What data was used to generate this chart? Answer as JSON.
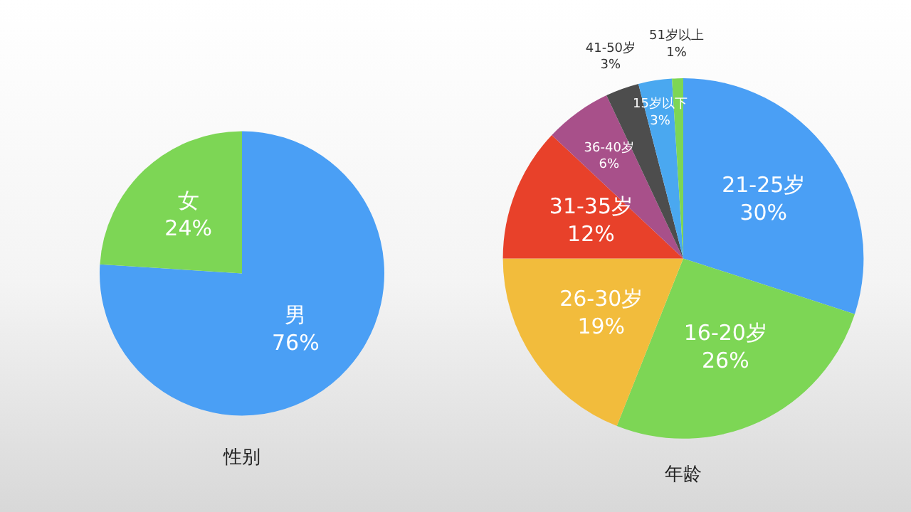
{
  "chart_data": [
    {
      "type": "pie",
      "title": "性别",
      "categories": [
        "男",
        "女"
      ],
      "values": [
        76,
        24
      ],
      "value_labels": [
        "76%",
        "24%"
      ],
      "colors": [
        "#4a9ff5",
        "#7dd655"
      ]
    },
    {
      "type": "pie",
      "title": "年龄",
      "categories": [
        "21-25岁",
        "16-20岁",
        "26-30岁",
        "31-35岁",
        "36-40岁",
        "41-50岁",
        "15岁以下",
        "51岁以上"
      ],
      "values": [
        30,
        26,
        19,
        12,
        6,
        3,
        3,
        1
      ],
      "value_labels": [
        "30%",
        "26%",
        "19%",
        "12%",
        "6%",
        "3%",
        "3%",
        "1%"
      ],
      "colors": [
        "#4a9ff5",
        "#7dd655",
        "#f2bc3c",
        "#e8412a",
        "#a8508a",
        "#4d4d4d",
        "#4aa8f0",
        "#7dd655"
      ]
    }
  ]
}
